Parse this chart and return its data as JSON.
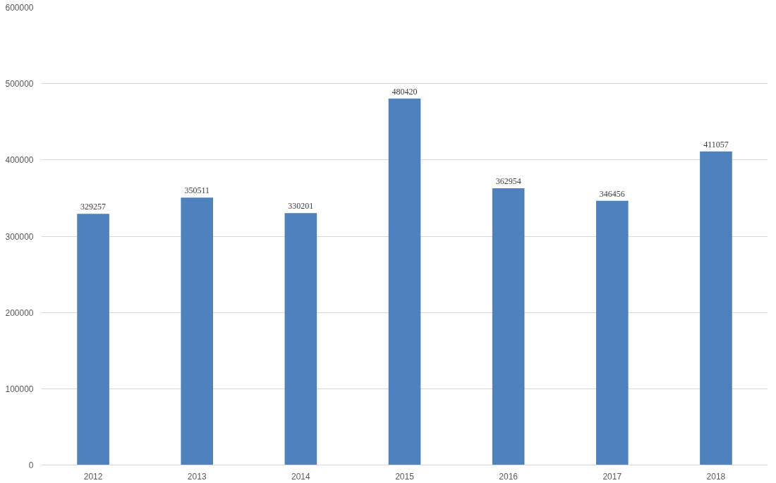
{
  "chart_data": {
    "type": "bar",
    "categories": [
      "2012",
      "2013",
      "2014",
      "2015",
      "2016",
      "2017",
      "2018"
    ],
    "values": [
      329257,
      350511,
      330201,
      480420,
      362954,
      346456,
      411057
    ],
    "color": "#4f81bd",
    "ylim": [
      0,
      600000
    ],
    "yticks": [
      0,
      100000,
      200000,
      300000,
      400000,
      500000,
      600000
    ],
    "grid": "y",
    "data_labels": true
  }
}
